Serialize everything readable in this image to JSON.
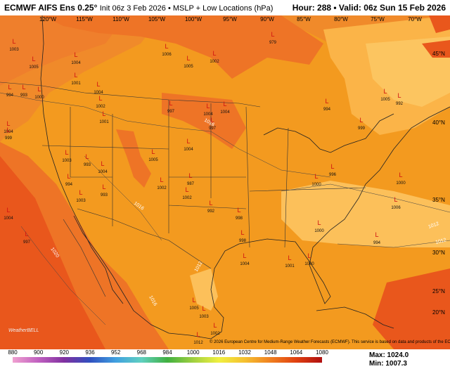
{
  "header": {
    "title": "ECMWF AIFS Ens 0.25°",
    "init": "Init 06z 3 Feb 2026 • MSLP + Low Locations (hPa)",
    "valid": "Hour: 288 • Valid: 06z Sun 15 Feb 2026"
  },
  "map": {
    "lon_labels": [
      "120°W",
      "115°W",
      "110°W",
      "105°W",
      "100°W",
      "95°W",
      "90°W",
      "85°W",
      "80°W",
      "75°W",
      "70°W"
    ],
    "lat_labels": [
      "45°N",
      "40°N",
      "35°N",
      "30°N",
      "25°N",
      "20°N"
    ],
    "isobar_labels": [
      "1016",
      "1016",
      "1020",
      "1012",
      "1012",
      "1016",
      "1012"
    ],
    "low_symbol": "L",
    "lows": [
      "1003",
      "1005",
      "994",
      "993",
      "1000",
      "1004",
      "1001",
      "1004",
      "1002",
      "1001",
      "1006",
      "1005",
      "1002",
      "997",
      "1004",
      "1004",
      "997",
      "1004",
      "999",
      "1003",
      "994",
      "1003",
      "1004",
      "993",
      "1005",
      "1004",
      "1002",
      "987",
      "1002",
      "992",
      "998",
      "998",
      "1004",
      "996",
      "1000",
      "1000",
      "1001",
      "1000",
      "994",
      "1006",
      "994",
      "1005",
      "992",
      "999",
      "1000",
      "1004",
      "997",
      "1005",
      "1003",
      "1012",
      "1002",
      "979",
      "993"
    ],
    "credit": "© 2026 European Centre for Medium-Range Weather Forecasts (ECMWF). This service is based on data and products of the ECMWF.",
    "logo": "WeatherBELL"
  },
  "colorbar": {
    "ticks": [
      "880",
      "900",
      "920",
      "936",
      "952",
      "968",
      "984",
      "1000",
      "1016",
      "1032",
      "1048",
      "1064",
      "1080"
    ]
  },
  "stats": {
    "max": "Max: 1024.0",
    "min": "Min: 1007.3"
  }
}
